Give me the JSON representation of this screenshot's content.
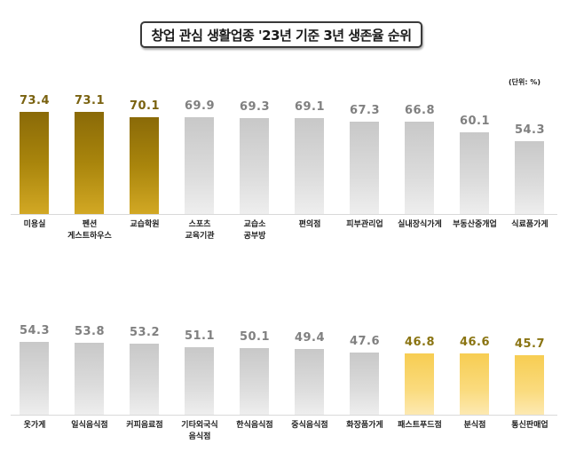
{
  "title": "창업 관심 생활업종 '23년 기준 3년 생존율 순위",
  "unit_label": "(단위: %)",
  "colors": {
    "top3": "#9a7a0a",
    "middle": "#cfcfcf",
    "bottom3": "#f8d265"
  },
  "chart_data": [
    {
      "type": "bar",
      "title": "창업 관심 생활업종 '23년 기준 3년 생존율 순위",
      "ylabel": "%",
      "categories": [
        "미용실",
        "펜션\n게스트하우스",
        "교습학원",
        "스포츠\n교육기관",
        "교습소\n공부방",
        "편의점",
        "피부관리업",
        "실내장식가게",
        "부동산중개업",
        "식료품가게"
      ],
      "values": [
        73.4,
        73.1,
        70.1,
        69.9,
        69.3,
        69.1,
        67.3,
        66.8,
        60.1,
        54.3
      ],
      "styles": [
        "dark",
        "dark",
        "dark",
        "grey",
        "grey",
        "grey",
        "grey",
        "grey",
        "grey",
        "grey"
      ],
      "grid": false
    },
    {
      "type": "bar",
      "categories": [
        "옷가게",
        "일식음식점",
        "커피음료점",
        "기타외국식\n음식점",
        "한식음식점",
        "중식음식점",
        "화장품가게",
        "패스트푸드점",
        "분식점",
        "통신판매업"
      ],
      "values": [
        54.3,
        53.8,
        53.2,
        51.1,
        50.1,
        49.4,
        47.6,
        46.8,
        46.6,
        45.7
      ],
      "styles": [
        "grey",
        "grey",
        "grey",
        "grey",
        "grey",
        "grey",
        "grey",
        "light",
        "light",
        "light"
      ],
      "grid": false
    }
  ]
}
